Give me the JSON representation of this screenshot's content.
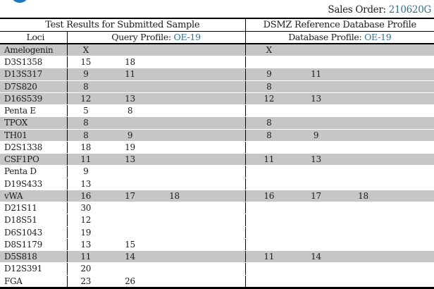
{
  "topbar": {
    "sales_order_label": "Sales Order:",
    "sales_order_value": "210620G"
  },
  "table": {
    "section_headers": {
      "query": "Test Results for Submitted Sample",
      "database": "DSMZ Reference Database Profile"
    },
    "column_headers": {
      "loci": "Loci",
      "query_profile_label": "Query Profile:",
      "query_profile_value": "OE-19",
      "database_profile_label": "Database Profile:",
      "database_profile_value": "OE-19"
    },
    "rows": [
      {
        "locus": "Amelogenin",
        "query": [
          "X"
        ],
        "database": [
          "X"
        ],
        "highlight": true
      },
      {
        "locus": "D3S1358",
        "query": [
          "15",
          "18"
        ],
        "database": [],
        "highlight": false
      },
      {
        "locus": "D13S317",
        "query": [
          "9",
          "11"
        ],
        "database": [
          "9",
          "11"
        ],
        "highlight": true
      },
      {
        "locus": "D7S820",
        "query": [
          "8"
        ],
        "database": [
          "8"
        ],
        "highlight": true
      },
      {
        "locus": "D16S539",
        "query": [
          "12",
          "13"
        ],
        "database": [
          "12",
          "13"
        ],
        "highlight": true
      },
      {
        "locus": "Penta E",
        "query": [
          "5",
          "8"
        ],
        "database": [],
        "highlight": false
      },
      {
        "locus": "TPOX",
        "query": [
          "8"
        ],
        "database": [
          "8"
        ],
        "highlight": true
      },
      {
        "locus": "TH01",
        "query": [
          "8",
          "9"
        ],
        "database": [
          "8",
          "9"
        ],
        "highlight": true
      },
      {
        "locus": "D2S1338",
        "query": [
          "18",
          "19"
        ],
        "database": [],
        "highlight": false
      },
      {
        "locus": "CSF1PO",
        "query": [
          "11",
          "13"
        ],
        "database": [
          "11",
          "13"
        ],
        "highlight": true
      },
      {
        "locus": "Penta D",
        "query": [
          "9"
        ],
        "database": [],
        "highlight": false
      },
      {
        "locus": "D19S433",
        "query": [
          "13"
        ],
        "database": [],
        "highlight": false
      },
      {
        "locus": "vWA",
        "query": [
          "16",
          "17",
          "18"
        ],
        "database": [
          "16",
          "17",
          "18"
        ],
        "highlight": true
      },
      {
        "locus": "D21S11",
        "query": [
          "30"
        ],
        "database": [],
        "highlight": false
      },
      {
        "locus": "D18S51",
        "query": [
          "12"
        ],
        "database": [],
        "highlight": false
      },
      {
        "locus": "D6S1043",
        "query": [
          "19"
        ],
        "database": [],
        "highlight": false
      },
      {
        "locus": "D8S1179",
        "query": [
          "13",
          "15"
        ],
        "database": [],
        "highlight": false
      },
      {
        "locus": "D5S818",
        "query": [
          "11",
          "14"
        ],
        "database": [
          "11",
          "14"
        ],
        "highlight": true
      },
      {
        "locus": "D12S391",
        "query": [
          "20"
        ],
        "database": [],
        "highlight": false
      },
      {
        "locus": "FGA",
        "query": [
          "23",
          "26"
        ],
        "database": [],
        "highlight": false
      }
    ]
  },
  "icons": {
    "logo": "partial-blue-circle-logo"
  },
  "colors": {
    "row_highlight": "#c6c6c6",
    "accent": "#31708f",
    "logo_blue": "#1f76b8",
    "border": "#000000"
  }
}
